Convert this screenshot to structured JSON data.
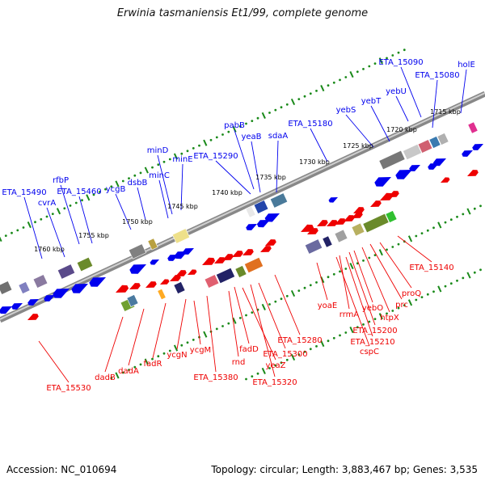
{
  "title": "Erwinia tasmaniensis Et1/99, complete genome",
  "accession": "Accession: NC_010694",
  "summary": "Topology: circular; Length: 3,883,467 bp; Genes: 3,535",
  "colors": {
    "forward": "#0000ee",
    "reverse": "#ee0000",
    "tick": "#1a8a1a",
    "backbone": "#777777"
  },
  "kbp_labels": [
    "1715 kbp",
    "1720 kbp",
    "1725 kbp",
    "1730 kbp",
    "1735 kbp",
    "1740 kbp",
    "1745 kbp",
    "1750 kbp",
    "1755 kbp",
    "1760 kbp"
  ],
  "forward_genes": [
    "holE",
    "ETA_15080",
    "ETA_15090",
    "yebU",
    "yebT",
    "yebS",
    "ETA_15180",
    "sdaA",
    "yeaB",
    "pabB",
    "ETA_15290",
    "minE",
    "minD",
    "minC",
    "dsbB",
    "ycgB",
    "ETA_15460",
    "rfbP",
    "cvrA",
    "ETA_15490"
  ],
  "reverse_genes": [
    "ETA_15140",
    "proQ",
    "prc",
    "htpX",
    "yebO",
    "ETA_15200",
    "ETA_15210",
    "rrmA",
    "cspC",
    "yoaE",
    "ETA_15280",
    "ETA_15300",
    "ETA_15320",
    "yeaZ",
    "fadD",
    "rnd",
    "ETA_15380",
    "ycgM",
    "ycgN",
    "fadR",
    "dadA",
    "dadB",
    "ETA_15530"
  ]
}
